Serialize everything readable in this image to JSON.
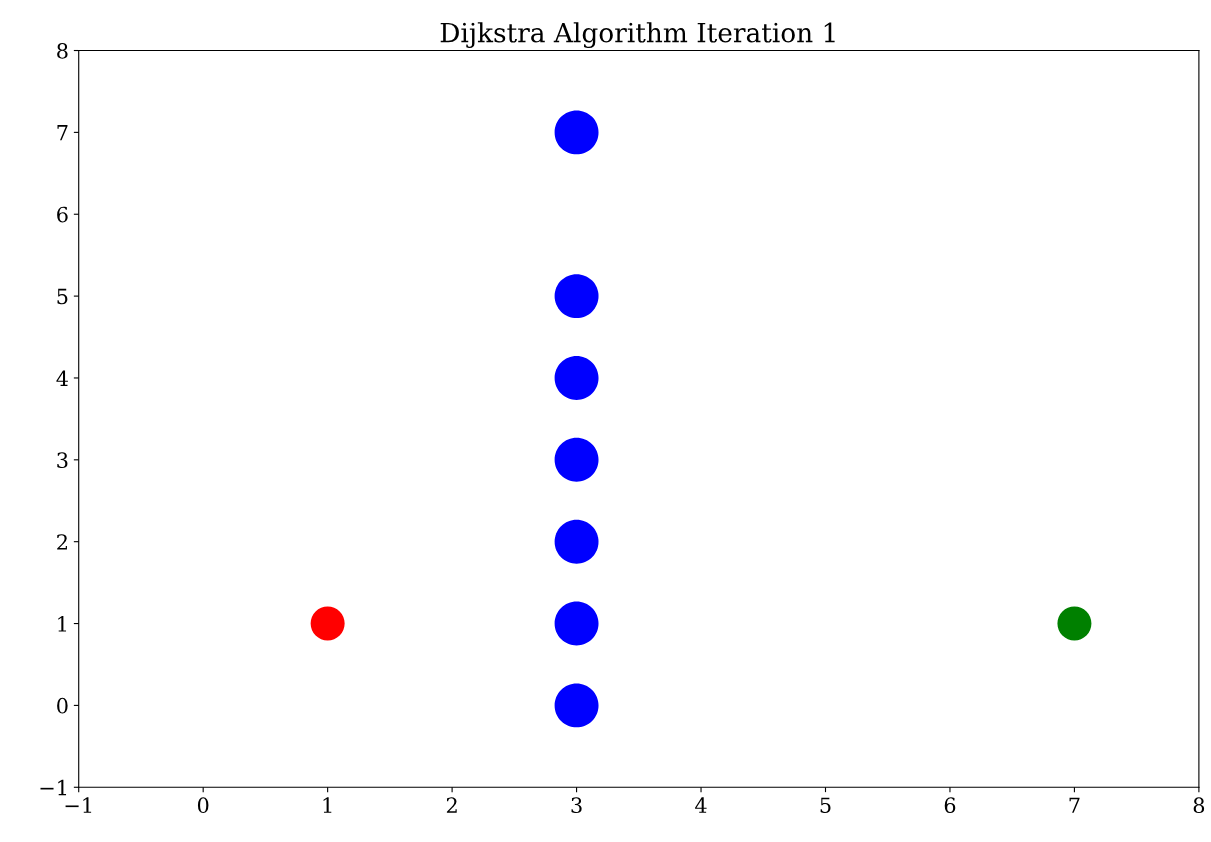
{
  "chart_data": {
    "type": "scatter",
    "title": "Dijkstra Algorithm Iteration 1",
    "series": [
      {
        "color": "#0000ff",
        "x": [
          3,
          3,
          3,
          3,
          3,
          3,
          3
        ],
        "values": [
          0,
          1,
          2,
          3,
          4,
          5,
          7
        ]
      },
      {
        "color": "#ff0000",
        "x": [
          1
        ],
        "values": [
          1
        ]
      },
      {
        "color": "#008000",
        "x": [
          7
        ],
        "values": [
          1
        ]
      }
    ],
    "xlim": [
      -1,
      8
    ],
    "ylim": [
      -1,
      8
    ],
    "xticks": [
      {
        "value": -1,
        "label": "−1"
      },
      0,
      1,
      2,
      3,
      4,
      5,
      6,
      7,
      8
    ],
    "yticks": [
      {
        "value": -1,
        "label": "−1"
      },
      0,
      1,
      2,
      3,
      4,
      5,
      6,
      7,
      8
    ],
    "marker": "circle"
  }
}
